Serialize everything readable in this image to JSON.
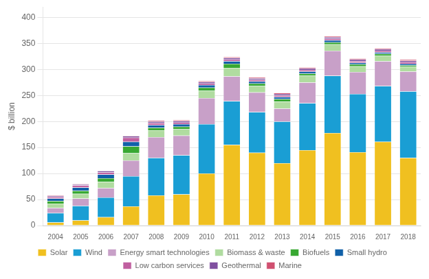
{
  "chart_data": {
    "type": "bar",
    "stacked": true,
    "ylabel": "$ billion",
    "categories": [
      2004,
      2005,
      2006,
      2007,
      2008,
      2009,
      2010,
      2011,
      2012,
      2013,
      2014,
      2015,
      2016,
      2017,
      2018
    ],
    "series": [
      {
        "name": "Solar",
        "color": "#f0c020",
        "values": [
          6,
          10,
          16,
          37,
          58,
          60,
          100,
          155,
          140,
          120,
          145,
          178,
          141,
          161,
          130
        ]
      },
      {
        "name": "Wind",
        "color": "#1a9ed4",
        "values": [
          18,
          28,
          38,
          58,
          72,
          75,
          95,
          84,
          78,
          80,
          90,
          110,
          112,
          107,
          128
        ]
      },
      {
        "name": "Energy smart technologies",
        "color": "#c8a0c8",
        "values": [
          10,
          14,
          18,
          30,
          40,
          38,
          50,
          48,
          38,
          25,
          40,
          48,
          42,
          48,
          38
        ]
      },
      {
        "name": "Biomass & waste",
        "color": "#b0dca0",
        "values": [
          8,
          9,
          12,
          14,
          13,
          12,
          14,
          16,
          12,
          13,
          13,
          12,
          11,
          10,
          9
        ]
      },
      {
        "name": "Biofuels",
        "color": "#38a832",
        "values": [
          5,
          6,
          7,
          13,
          5,
          5,
          6,
          8,
          5,
          5,
          4,
          4,
          4,
          4,
          3
        ]
      },
      {
        "name": "Small hydro",
        "color": "#1060a8",
        "values": [
          5,
          6,
          7,
          9,
          5,
          5,
          5,
          5,
          4,
          4,
          4,
          4,
          3,
          3,
          3
        ]
      },
      {
        "name": "Low carbon services",
        "color": "#c060a0",
        "values": [
          3,
          4,
          4,
          8,
          4,
          3,
          3,
          3,
          3,
          3,
          3,
          3,
          3,
          3,
          3
        ]
      },
      {
        "name": "Geothermal",
        "color": "#8050a0",
        "values": [
          2,
          2,
          3,
          3,
          3,
          3,
          3,
          3,
          3,
          3,
          3,
          3,
          3,
          3,
          3
        ]
      },
      {
        "name": "Marine",
        "color": "#d05070",
        "values": [
          1,
          1,
          1,
          1,
          2,
          2,
          2,
          2,
          2,
          2,
          2,
          2,
          2,
          2,
          2
        ]
      }
    ],
    "ylim": [
      0,
      420
    ],
    "yticks": [
      0,
      50,
      100,
      150,
      200,
      250,
      300,
      350,
      400
    ],
    "grid": true,
    "legend": "bottom"
  }
}
